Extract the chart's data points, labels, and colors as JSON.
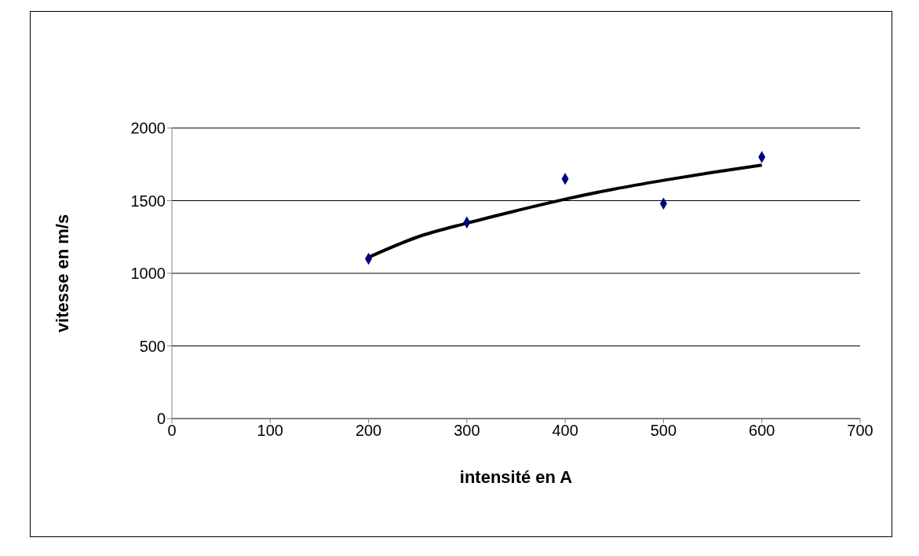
{
  "chart_data": {
    "type": "scatter",
    "xlabel": "intensité en A",
    "ylabel": "vitesse en m/s",
    "xlim": [
      0,
      700
    ],
    "xticks": [
      0,
      100,
      200,
      300,
      400,
      500,
      600,
      700
    ],
    "ylim": [
      0,
      2000
    ],
    "yticks": [
      0,
      500,
      1000,
      1500,
      2000
    ],
    "grid": "y",
    "series": [
      {
        "color": "#000080",
        "marker": "diamond",
        "x": [
          200,
          300,
          400,
          500,
          600
        ],
        "values": [
          1100,
          1350,
          1650,
          1480,
          1800
        ]
      },
      {
        "type": "line",
        "marker": "none",
        "color": "#000000",
        "x": [
          200,
          250,
          300,
          350,
          400,
          450,
          500,
          550,
          600
        ],
        "values": [
          1110,
          1250,
          1345,
          1430,
          1510,
          1580,
          1640,
          1695,
          1745
        ]
      }
    ]
  }
}
